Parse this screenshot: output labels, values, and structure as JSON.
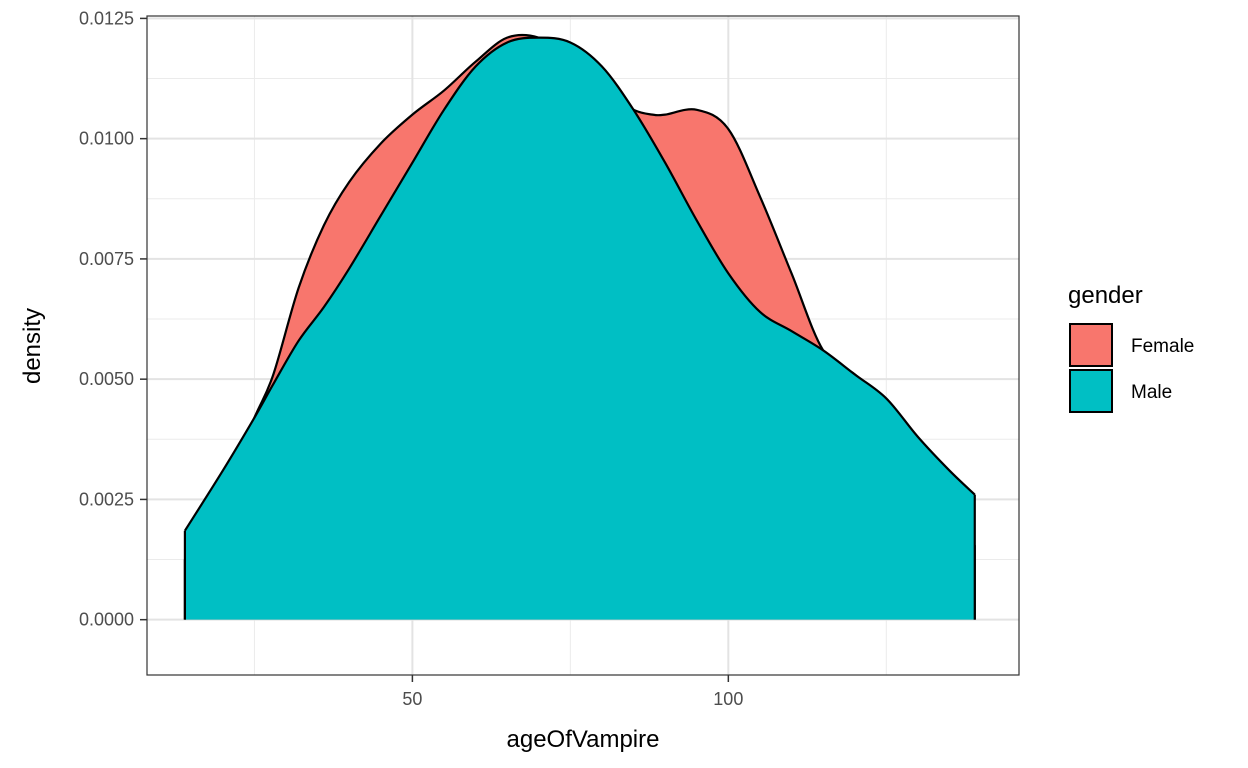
{
  "chart_data": {
    "type": "area",
    "subtype": "density",
    "title": "",
    "xlabel": "ageOfVampire",
    "ylabel": "density",
    "xlim": [
      8,
      146
    ],
    "ylim": [
      -0.00115,
      0.01255
    ],
    "x_ticks": [
      50,
      100
    ],
    "y_ticks": [
      0.0,
      0.0025,
      0.005,
      0.0075,
      0.01,
      0.0125
    ],
    "y_tick_labels": [
      "0.0000",
      "0.0025",
      "0.0050",
      "0.0075",
      "0.0100",
      "0.0125"
    ],
    "grid": true,
    "legend": {
      "title": "gender",
      "position": "right"
    },
    "series": [
      {
        "name": "Female",
        "color": "#F8766D",
        "x": [
          14,
          20,
          25,
          28,
          32,
          36,
          40,
          45,
          50,
          55,
          60,
          65,
          70,
          75,
          80,
          85,
          88,
          90,
          95,
          100,
          105,
          110,
          115,
          120,
          125,
          130,
          135,
          139
        ],
        "y": [
          0.00125,
          0.0027,
          0.0042,
          0.0051,
          0.0069,
          0.0082,
          0.0091,
          0.0099,
          0.0105,
          0.011,
          0.0116,
          0.0121,
          0.0121,
          0.0117,
          0.011,
          0.0106,
          0.0105,
          0.0105,
          0.0106,
          0.0102,
          0.0088,
          0.0072,
          0.0056,
          0.0051,
          0.0045,
          0.0035,
          0.0023,
          0.00155
        ]
      },
      {
        "name": "Male",
        "color": "#00BFC4",
        "x": [
          14,
          20,
          25,
          28,
          32,
          36,
          40,
          45,
          50,
          55,
          60,
          65,
          70,
          75,
          80,
          85,
          90,
          95,
          100,
          105,
          110,
          115,
          120,
          125,
          130,
          135,
          139
        ],
        "y": [
          0.00185,
          0.0031,
          0.0042,
          0.0049,
          0.0058,
          0.0065,
          0.0073,
          0.0084,
          0.0095,
          0.0106,
          0.0115,
          0.012,
          0.0121,
          0.012,
          0.0115,
          0.0106,
          0.0095,
          0.0083,
          0.0072,
          0.0064,
          0.006,
          0.0056,
          0.0051,
          0.0046,
          0.0038,
          0.0031,
          0.0026
        ]
      }
    ]
  }
}
